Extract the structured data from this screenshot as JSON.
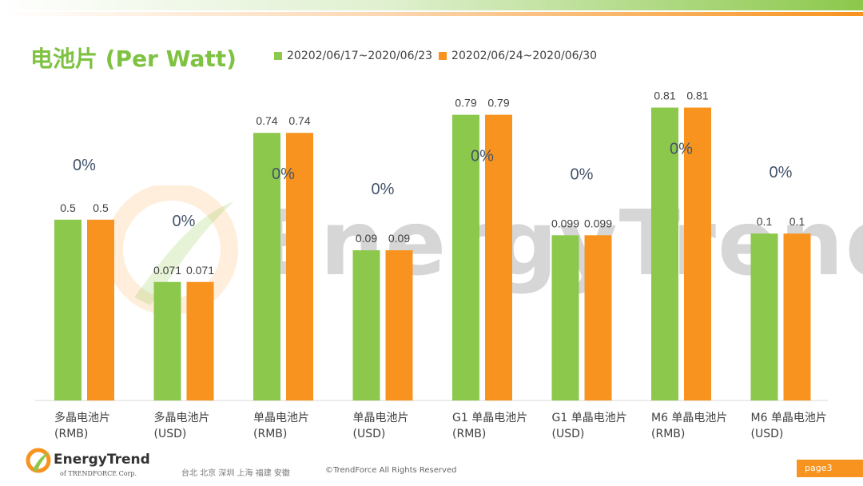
{
  "header": {
    "title": "电池片 (Per Watt)"
  },
  "colors": {
    "series1": "#8cc84b",
    "series2": "#f7931e",
    "title": "#7ec242"
  },
  "chart_data": {
    "type": "bar",
    "categories": [
      "多晶电池片\n(RMB)",
      "多晶电池片\n(USD)",
      "单晶电池片\n(RMB)",
      "单晶电池片\n(USD)",
      "G1 单晶电池片\n(RMB)",
      "G1 单晶电池片\n(USD)",
      "M6 单晶电池片\n(RMB)",
      "M6 单晶电池片\n(USD)"
    ],
    "series": [
      {
        "name": "20202/06/17~2020/06/23",
        "values": [
          0.5,
          0.071,
          0.74,
          0.09,
          0.79,
          0.099,
          0.81,
          0.1
        ],
        "labels": [
          "0.5",
          "0.071",
          "0.74",
          "0.09",
          "0.79",
          "0.099",
          "0.81",
          "0.1"
        ],
        "color": "#8cc84b"
      },
      {
        "name": "20202/06/24~2020/06/30",
        "values": [
          0.5,
          0.071,
          0.74,
          0.09,
          0.79,
          0.099,
          0.81,
          0.1
        ],
        "labels": [
          "0.5",
          "0.071",
          "0.74",
          "0.09",
          "0.79",
          "0.099",
          "0.81",
          "0.1"
        ],
        "color": "#f7931e"
      }
    ],
    "change_labels": [
      "0%",
      "0%",
      "0%",
      "0%",
      "0%",
      "0%",
      "0%",
      "0%"
    ],
    "axis_groups": [
      {
        "categories": [
          0,
          2,
          4,
          6
        ],
        "ymax": 0.84
      },
      {
        "categories": [
          1,
          3,
          5,
          7
        ],
        "ymax": 0.182
      }
    ],
    "grid": false,
    "legend": "top"
  },
  "watermark": {
    "text": "EnergyTrend"
  },
  "footer": {
    "brand": "EnergyTrend",
    "sub": "of TRENDFORCE Corp.",
    "cities": "台北 北京 深圳 上海 福建 安徽",
    "copyright": "©TrendForce All Rights Reserved",
    "page": "page3"
  }
}
